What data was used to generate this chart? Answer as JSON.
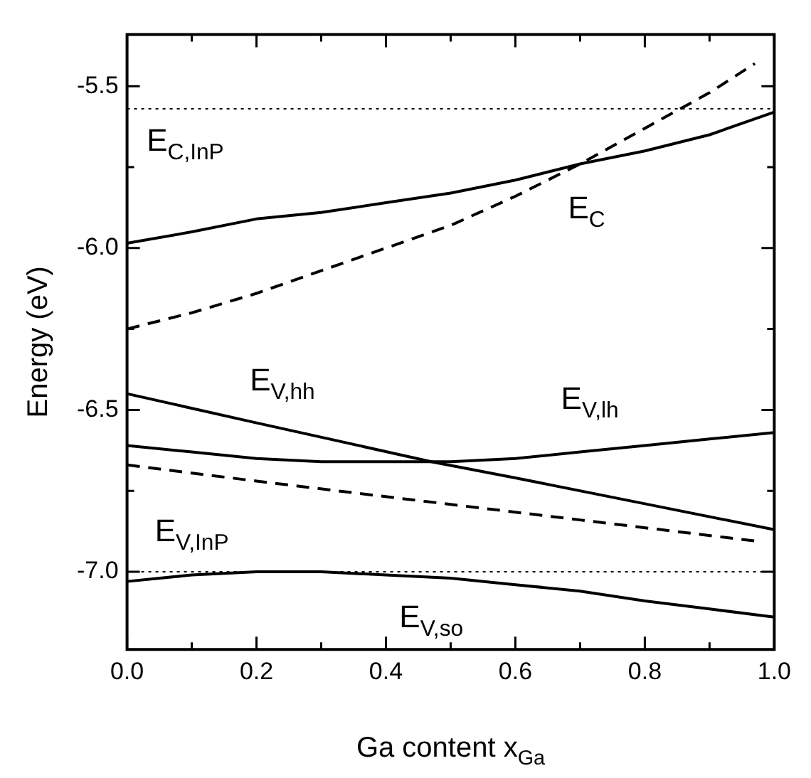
{
  "chart_data": {
    "type": "line",
    "xlabel": "Ga content x$_{Ga}$",
    "ylabel": "Energy (eV)",
    "xlim": [
      0,
      1
    ],
    "ylim": [
      -7.24,
      -5.34
    ],
    "xticks": [
      {
        "value": 0,
        "label": "0.0"
      },
      {
        "value": 0.1,
        "label": null
      },
      {
        "value": 0.2,
        "label": "0.2"
      },
      {
        "value": 0.3,
        "label": null
      },
      {
        "value": 0.4,
        "label": "0.4"
      },
      {
        "value": 0.5,
        "label": null
      },
      {
        "value": 0.6,
        "label": "0.6"
      },
      {
        "value": 0.7,
        "label": null
      },
      {
        "value": 0.8,
        "label": "0.8"
      },
      {
        "value": 0.9,
        "label": null
      },
      {
        "value": 1,
        "label": "1.0"
      }
    ],
    "yticks": [
      {
        "value": -7,
        "label": "-7.0"
      },
      {
        "value": -6.75,
        "label": null
      },
      {
        "value": -6.5,
        "label": "-6.5"
      },
      {
        "value": -6.25,
        "label": null
      },
      {
        "value": -6,
        "label": "-6.0"
      },
      {
        "value": -5.75,
        "label": null
      },
      {
        "value": -5.5,
        "label": "-5.5"
      }
    ],
    "grid": false,
    "legend": false,
    "marker": "none",
    "series": [
      {
        "color": "#000000",
        "line_style": "solid",
        "x": [
          0,
          0.1,
          0.2,
          0.3,
          0.4,
          0.5,
          0.6,
          0.7,
          0.8,
          0.9,
          1
        ],
        "values": [
          -5.985,
          -5.95,
          -5.91,
          -5.89,
          -5.86,
          -5.83,
          -5.79,
          -5.74,
          -5.7,
          -5.65,
          -5.58
        ]
      },
      {
        "color": "#000000",
        "line_style": "dashed",
        "x": [
          0,
          0.1,
          0.2,
          0.3,
          0.4,
          0.5,
          0.6,
          0.7,
          0.8,
          0.9,
          0.97
        ],
        "values": [
          -6.25,
          -6.2,
          -6.14,
          -6.07,
          -6,
          -5.93,
          -5.84,
          -5.74,
          -5.63,
          -5.52,
          -5.43
        ]
      },
      {
        "color": "#000000",
        "line_style": "solid",
        "x": [
          0,
          0.2,
          0.47,
          0.6,
          0.8,
          1
        ],
        "values": [
          -6.45,
          -6.54,
          -6.66,
          -6.71,
          -6.79,
          -6.87
        ]
      },
      {
        "color": "#000000",
        "line_style": "solid",
        "x": [
          0,
          0.1,
          0.2,
          0.3,
          0.4,
          0.5,
          0.6,
          0.7,
          0.8,
          0.9,
          1
        ],
        "values": [
          -6.61,
          -6.63,
          -6.65,
          -6.66,
          -6.66,
          -6.66,
          -6.65,
          -6.63,
          -6.61,
          -6.59,
          -6.57
        ]
      },
      {
        "color": "#000000",
        "line_style": "dashed",
        "x": [
          0,
          0.2,
          0.45,
          0.7,
          0.97
        ],
        "values": [
          -6.67,
          -6.72,
          -6.78,
          -6.84,
          -6.905
        ]
      },
      {
        "color": "#000000",
        "line_style": "solid",
        "x": [
          0,
          0.1,
          0.2,
          0.3,
          0.4,
          0.5,
          0.6,
          0.7,
          0.8,
          0.9,
          1
        ],
        "values": [
          -7.03,
          -7.01,
          -7,
          -7,
          -7.01,
          -7.02,
          -7.04,
          -7.06,
          -7.09,
          -7.115,
          -7.14
        ]
      }
    ],
    "ref_lines": [
      {
        "axis": "y",
        "value": -5.57,
        "color": "#000000",
        "line_style": "dotted"
      },
      {
        "axis": "y",
        "value": -7,
        "color": "#000000",
        "line_style": "dotted"
      }
    ],
    "annotations": [
      "E$_{C,InP}$",
      "E$_{C}$",
      "E$_{V,hh}$",
      "E$_{V,lh}$",
      "E$_{V,InP}$",
      "E$_{V,so}$"
    ]
  }
}
